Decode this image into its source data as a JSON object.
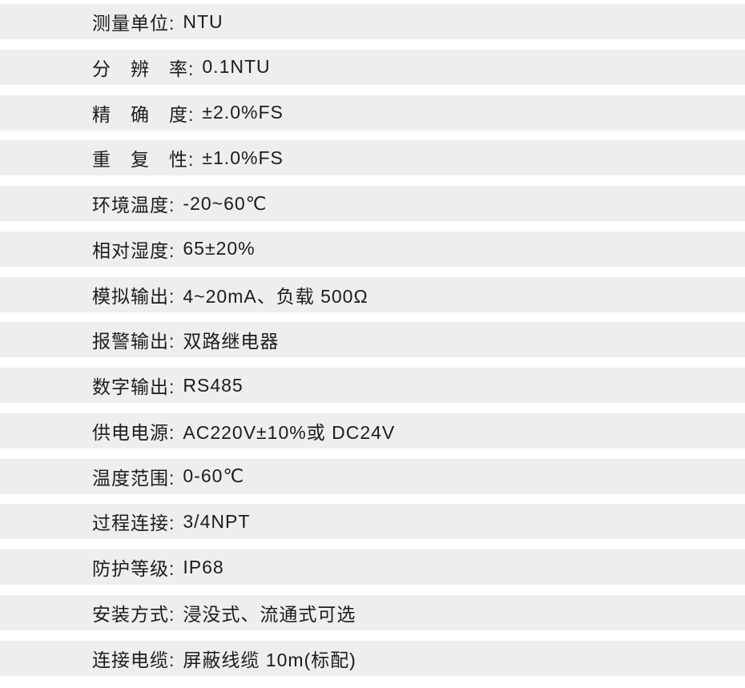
{
  "colors": {
    "page_bg": "#ffffff",
    "row_bg": "#eeeeee",
    "text": "#1c1c1c"
  },
  "spec_table": {
    "rows": [
      {
        "label": "测量单位:",
        "value": "NTU"
      },
      {
        "label": "分　辨　率:",
        "value": "0.1NTU"
      },
      {
        "label": "精　确　度:",
        "value": "±2.0%FS"
      },
      {
        "label": "重　复　性:",
        "value": "±1.0%FS"
      },
      {
        "label": "环境温度:",
        "value": "-20~60℃"
      },
      {
        "label": "相对湿度:",
        "value": "65±20%"
      },
      {
        "label": "模拟输出:",
        "value": "4~20mA、负载 500Ω"
      },
      {
        "label": "报警输出:",
        "value": "双路继电器"
      },
      {
        "label": "数字输出:",
        "value": "RS485"
      },
      {
        "label": "供电电源:",
        "value": "AC220V±10%或 DC24V"
      },
      {
        "label": "温度范围:",
        "value": "0-60℃"
      },
      {
        "label": "过程连接:",
        "value": "3/4NPT"
      },
      {
        "label": "防护等级:",
        "value": "IP68"
      },
      {
        "label": "安装方式:",
        "value": "浸没式、流通式可选"
      },
      {
        "label": "连接电缆:",
        "value": "屏蔽线缆 10m(标配)"
      }
    ]
  }
}
